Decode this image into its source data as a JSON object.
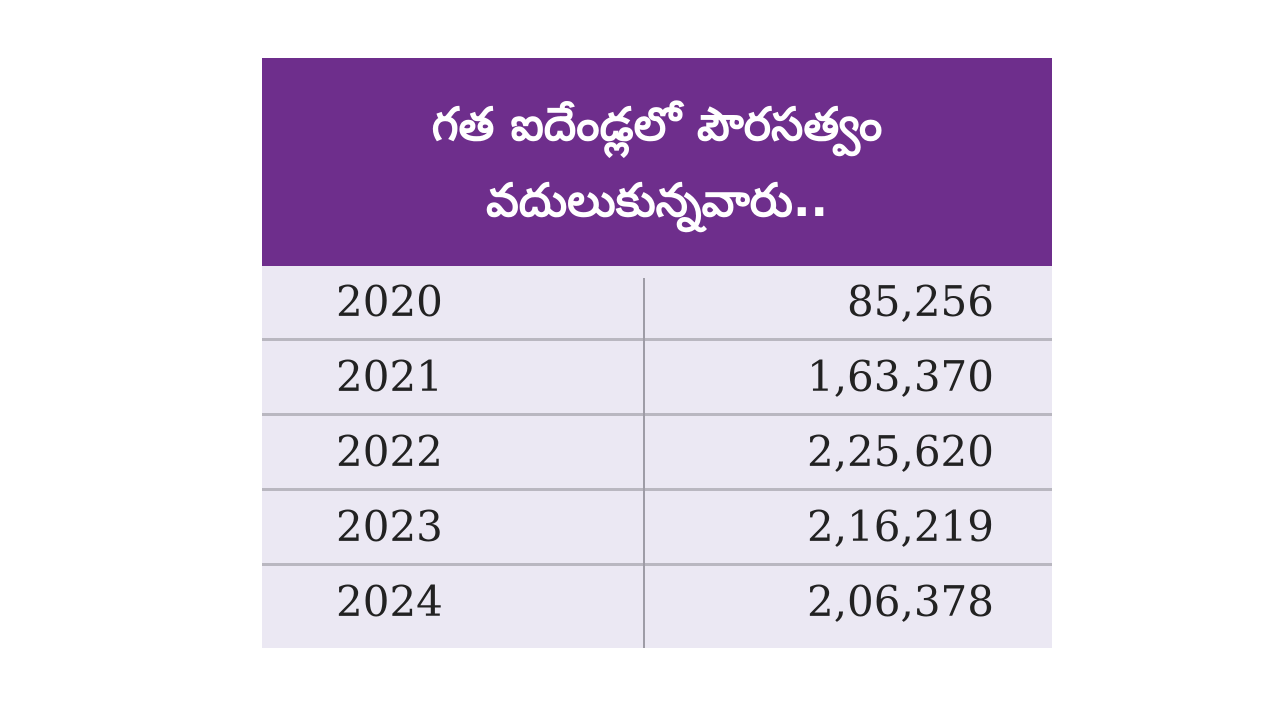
{
  "colors": {
    "header_bg": "#6e2e8c",
    "header_text": "#ffffff",
    "row_bg": "#ebe8f3",
    "row_sep": "#b9b7c0",
    "col_sep": "#9e9ca6",
    "cell_text": "#222222"
  },
  "chart_data": {
    "type": "table",
    "title_lines": [
      "గత ఐదేండ్లలో పౌరసత్వం",
      "వదులుకున్నవారు.."
    ],
    "columns": [
      "",
      ""
    ],
    "rows": [
      {
        "year": "2020",
        "value": "85,256"
      },
      {
        "year": "2021",
        "value": "1,63,370"
      },
      {
        "year": "2022",
        "value": "2,25,620"
      },
      {
        "year": "2023",
        "value": "2,16,219"
      },
      {
        "year": "2024",
        "value": "2,06,378"
      }
    ]
  }
}
